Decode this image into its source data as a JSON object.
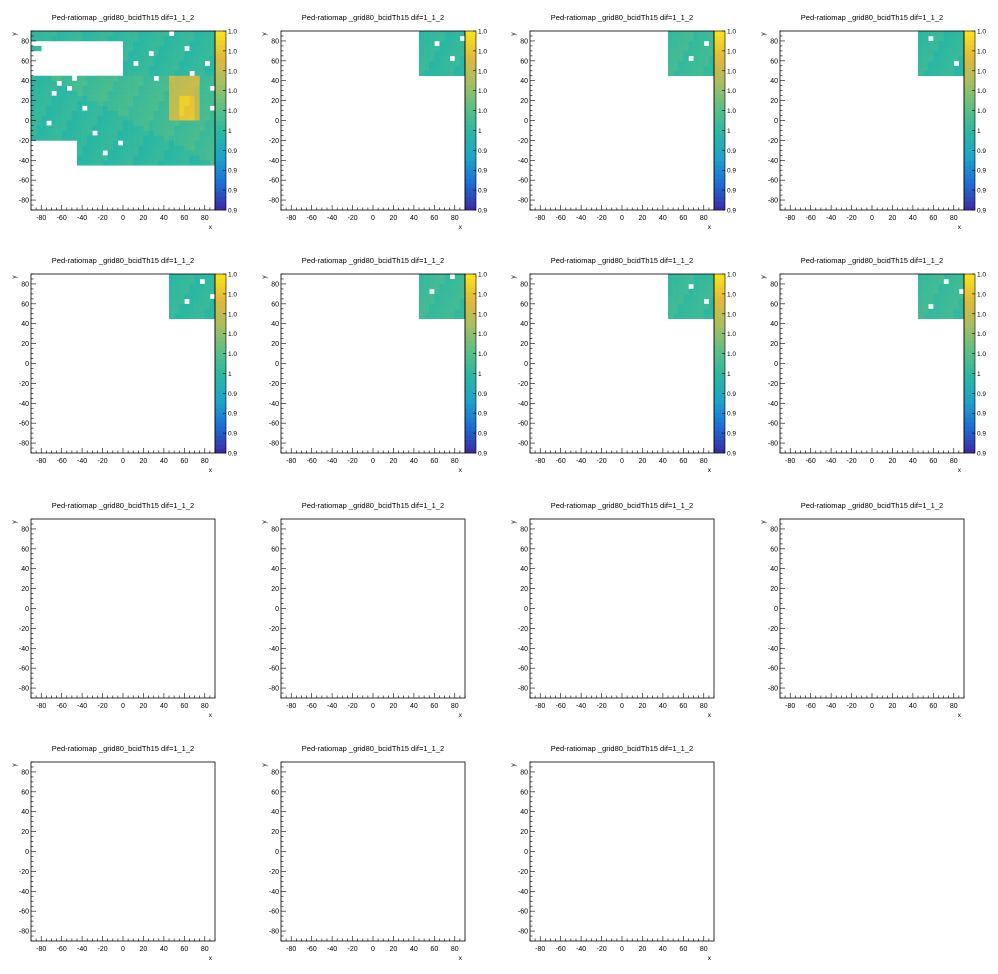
{
  "chart_data": {
    "type": "heatmap",
    "layout": {
      "columns": 4,
      "rows": 4
    },
    "palette": {
      "white": "#ffffff",
      "empty_cell": "#ffffff",
      "color_scale": [
        "#3a2ea6",
        "#1d6fd6",
        "#1da3c9",
        "#2ab7a3",
        "#5abf85",
        "#a5be63",
        "#e0b83c",
        "#f8e01c"
      ]
    },
    "panels": [
      {
        "title": "Ped-ratiomap _grid80_bcidTh15 dif=1_1_2",
        "xlabel": "x",
        "ylabel": "y",
        "xlim": [
          -90,
          90
        ],
        "ylim": [
          -90,
          90
        ],
        "x_ticks": [
          "-80",
          "-60",
          "-40",
          "-20",
          "0",
          "20",
          "40",
          "60",
          "80"
        ],
        "y_ticks": [
          "80",
          "60",
          "40",
          "20",
          "0",
          "-20",
          "-40",
          "-60",
          "-80"
        ],
        "has_data": true,
        "colorbar": {
          "labels": [
            "1.0",
            "1.0",
            "1.0",
            "1.0",
            "1.0",
            "1",
            "0.9",
            "0.9",
            "0.9",
            "0.9"
          ]
        },
        "cell_size": 5,
        "regions": [
          {
            "x": [
              0,
              90
            ],
            "y": [
              45,
              90
            ],
            "value": 0.45
          },
          {
            "x": [
              -90,
              0
            ],
            "y": [
              80,
              90
            ],
            "value": 0.45
          },
          {
            "x": [
              -90,
              -80
            ],
            "y": [
              70,
              75
            ],
            "value": 0.45
          },
          {
            "x": [
              -90,
              90
            ],
            "y": [
              0,
              45
            ],
            "value": 0.5
          },
          {
            "x": [
              -45,
              90
            ],
            "y": [
              -45,
              0
            ],
            "value": 0.5
          },
          {
            "x": [
              -90,
              -45
            ],
            "y": [
              -20,
              0
            ],
            "value": 0.5
          },
          {
            "x": [
              45,
              75
            ],
            "y": [
              0,
              45
            ],
            "value": 0.78
          },
          {
            "x": [
              55,
              70
            ],
            "y": [
              0,
              25
            ],
            "value": 0.92
          }
        ],
        "holes": [
          [
            -70,
            25
          ],
          [
            -65,
            35
          ],
          [
            -55,
            30
          ],
          [
            -50,
            40
          ],
          [
            -40,
            10
          ],
          [
            -30,
            -15
          ],
          [
            -20,
            -35
          ],
          [
            10,
            55
          ],
          [
            25,
            65
          ],
          [
            45,
            85
          ],
          [
            60,
            70
          ],
          [
            80,
            55
          ],
          [
            85,
            10
          ],
          [
            -5,
            -25
          ],
          [
            -75,
            -5
          ],
          [
            -60,
            -25
          ],
          [
            30,
            40
          ],
          [
            65,
            45
          ],
          [
            85,
            30
          ]
        ]
      },
      {
        "title": "Ped-ratiomap _grid80_bcidTh15 dif=1_1_2",
        "xlabel": "x",
        "ylabel": "y",
        "xlim": [
          -90,
          90
        ],
        "ylim": [
          -90,
          90
        ],
        "x_ticks": [
          "-80",
          "-60",
          "-40",
          "-20",
          "0",
          "20",
          "40",
          "60",
          "80"
        ],
        "y_ticks": [
          "80",
          "60",
          "40",
          "20",
          "0",
          "-20",
          "-40",
          "-60",
          "-80"
        ],
        "has_data": true,
        "colorbar": {
          "labels": [
            "1.0",
            "1.0",
            "1.0",
            "1.0",
            "1.0",
            "1",
            "0.9",
            "0.9",
            "0.9",
            "0.9"
          ]
        },
        "cell_size": 5,
        "regions": [
          {
            "x": [
              45,
              90
            ],
            "y": [
              45,
              90
            ],
            "value": 0.45
          }
        ],
        "holes": [
          [
            60,
            75
          ],
          [
            75,
            60
          ],
          [
            85,
            80
          ]
        ]
      },
      {
        "title": "Ped-ratiomap _grid80_bcidTh15 dif=1_1_2",
        "xlabel": "x",
        "ylabel": "y",
        "xlim": [
          -90,
          90
        ],
        "ylim": [
          -90,
          90
        ],
        "x_ticks": [
          "-80",
          "-60",
          "-40",
          "-20",
          "0",
          "20",
          "40",
          "60",
          "80"
        ],
        "y_ticks": [
          "80",
          "60",
          "40",
          "20",
          "0",
          "-20",
          "-40",
          "-60",
          "-80"
        ],
        "has_data": true,
        "colorbar": {
          "labels": [
            "1.0",
            "1.0",
            "1.0",
            "1.0",
            "1.0",
            "1",
            "0.9",
            "0.9",
            "0.9",
            "0.9"
          ]
        },
        "cell_size": 5,
        "regions": [
          {
            "x": [
              45,
              90
            ],
            "y": [
              45,
              90
            ],
            "value": 0.48
          }
        ],
        "holes": [
          [
            65,
            60
          ],
          [
            80,
            75
          ]
        ]
      },
      {
        "title": "Ped-ratiomap _grid80_bcidTh15 dif=1_1_2",
        "xlabel": "x",
        "ylabel": "y",
        "xlim": [
          -90,
          90
        ],
        "ylim": [
          -90,
          90
        ],
        "x_ticks": [
          "-80",
          "-60",
          "-40",
          "-20",
          "0",
          "20",
          "40",
          "60",
          "80"
        ],
        "y_ticks": [
          "80",
          "60",
          "40",
          "20",
          "0",
          "-20",
          "-40",
          "-60",
          "-80"
        ],
        "has_data": true,
        "colorbar": {
          "labels": [
            "1.0",
            "1.0",
            "1.0",
            "1.0",
            "1.0",
            "1",
            "0.9",
            "0.9",
            "0.9",
            "0.9"
          ]
        },
        "cell_size": 5,
        "regions": [
          {
            "x": [
              45,
              90
            ],
            "y": [
              45,
              90
            ],
            "value": 0.45
          }
        ],
        "holes": [
          [
            55,
            80
          ],
          [
            80,
            55
          ]
        ]
      },
      {
        "title": "Ped-ratiomap _grid80_bcidTh15 dif=1_1_2",
        "xlabel": "x",
        "ylabel": "y",
        "xlim": [
          -90,
          90
        ],
        "ylim": [
          -90,
          90
        ],
        "x_ticks": [
          "-80",
          "-60",
          "-40",
          "-20",
          "0",
          "20",
          "40",
          "60",
          "80"
        ],
        "y_ticks": [
          "80",
          "60",
          "40",
          "20",
          "0",
          "-20",
          "-40",
          "-60",
          "-80"
        ],
        "has_data": true,
        "colorbar": {
          "labels": [
            "1.0",
            "1.0",
            "1.0",
            "1.0",
            "1.0",
            "1",
            "0.9",
            "0.9",
            "0.9",
            "0.9"
          ]
        },
        "cell_size": 5,
        "regions": [
          {
            "x": [
              45,
              90
            ],
            "y": [
              45,
              90
            ],
            "value": 0.45
          }
        ],
        "holes": [
          [
            60,
            60
          ],
          [
            75,
            80
          ],
          [
            85,
            65
          ]
        ]
      },
      {
        "title": "Ped-ratiomap _grid80_bcidTh15 dif=1_1_2",
        "xlabel": "x",
        "ylabel": "y",
        "xlim": [
          -90,
          90
        ],
        "ylim": [
          -90,
          90
        ],
        "x_ticks": [
          "-80",
          "-60",
          "-40",
          "-20",
          "0",
          "20",
          "40",
          "60",
          "80"
        ],
        "y_ticks": [
          "80",
          "60",
          "40",
          "20",
          "0",
          "-20",
          "-40",
          "-60",
          "-80"
        ],
        "has_data": true,
        "colorbar": {
          "labels": [
            "1.0",
            "1.0",
            "1.0",
            "1.0",
            "1.0",
            "1",
            "0.9",
            "0.9",
            "0.9",
            "0.9"
          ]
        },
        "cell_size": 5,
        "regions": [
          {
            "x": [
              45,
              90
            ],
            "y": [
              45,
              90
            ],
            "value": 0.48
          }
        ],
        "holes": [
          [
            55,
            70
          ],
          [
            75,
            85
          ]
        ]
      },
      {
        "title": "Ped-ratiomap _grid80_bcidTh15 dif=1_1_2",
        "xlabel": "x",
        "ylabel": "y",
        "xlim": [
          -90,
          90
        ],
        "ylim": [
          -90,
          90
        ],
        "x_ticks": [
          "-80",
          "-60",
          "-40",
          "-20",
          "0",
          "20",
          "40",
          "60",
          "80"
        ],
        "y_ticks": [
          "80",
          "60",
          "40",
          "20",
          "0",
          "-20",
          "-40",
          "-60",
          "-80"
        ],
        "has_data": true,
        "colorbar": {
          "labels": [
            "1.0",
            "1.0",
            "1.0",
            "1.0",
            "1.0",
            "1",
            "0.9",
            "0.9",
            "0.9",
            "0.9"
          ]
        },
        "cell_size": 5,
        "regions": [
          {
            "x": [
              45,
              90
            ],
            "y": [
              45,
              90
            ],
            "value": 0.47
          }
        ],
        "holes": [
          [
            65,
            75
          ],
          [
            80,
            60
          ]
        ]
      },
      {
        "title": "Ped-ratiomap _grid80_bcidTh15 dif=1_1_2",
        "xlabel": "x",
        "ylabel": "y",
        "xlim": [
          -90,
          90
        ],
        "ylim": [
          -90,
          90
        ],
        "x_ticks": [
          "-80",
          "-60",
          "-40",
          "-20",
          "0",
          "20",
          "40",
          "60",
          "80"
        ],
        "y_ticks": [
          "80",
          "60",
          "40",
          "20",
          "0",
          "-20",
          "-40",
          "-60",
          "-80"
        ],
        "has_data": true,
        "colorbar": {
          "labels": [
            "1.0",
            "1.0",
            "1.0",
            "1.0",
            "1.0",
            "1",
            "0.9",
            "0.9",
            "0.9",
            "0.9"
          ]
        },
        "cell_size": 5,
        "regions": [
          {
            "x": [
              45,
              90
            ],
            "y": [
              45,
              90
            ],
            "value": 0.48
          }
        ],
        "holes": [
          [
            55,
            55
          ],
          [
            70,
            80
          ],
          [
            85,
            70
          ]
        ]
      },
      {
        "title": "Ped-ratiomap _grid80_bcidTh15 dif=1_1_2",
        "xlabel": "x",
        "ylabel": "y",
        "xlim": [
          -90,
          90
        ],
        "ylim": [
          -90,
          90
        ],
        "x_ticks": [
          "-80",
          "-60",
          "-40",
          "-20",
          "0",
          "20",
          "40",
          "60",
          "80"
        ],
        "y_ticks": [
          "80",
          "60",
          "40",
          "20",
          "0",
          "-20",
          "-40",
          "-60",
          "-80"
        ],
        "has_data": false
      },
      {
        "title": "Ped-ratiomap _grid80_bcidTh15 dif=1_1_2",
        "xlabel": "x",
        "ylabel": "y",
        "xlim": [
          -90,
          90
        ],
        "ylim": [
          -90,
          90
        ],
        "x_ticks": [
          "-80",
          "-60",
          "-40",
          "-20",
          "0",
          "20",
          "40",
          "60",
          "80"
        ],
        "y_ticks": [
          "80",
          "60",
          "40",
          "20",
          "0",
          "-20",
          "-40",
          "-60",
          "-80"
        ],
        "has_data": false
      },
      {
        "title": "Ped-ratiomap _grid80_bcidTh15 dif=1_1_2",
        "xlabel": "x",
        "ylabel": "y",
        "xlim": [
          -90,
          90
        ],
        "ylim": [
          -90,
          90
        ],
        "x_ticks": [
          "-80",
          "-60",
          "-40",
          "-20",
          "0",
          "20",
          "40",
          "60",
          "80"
        ],
        "y_ticks": [
          "80",
          "60",
          "40",
          "20",
          "0",
          "-20",
          "-40",
          "-60",
          "-80"
        ],
        "has_data": false
      },
      {
        "title": "Ped-ratiomap _grid80_bcidTh15 dif=1_1_2",
        "xlabel": "x",
        "ylabel": "y",
        "xlim": [
          -90,
          90
        ],
        "ylim": [
          -90,
          90
        ],
        "x_ticks": [
          "-80",
          "-60",
          "-40",
          "-20",
          "0",
          "20",
          "40",
          "60",
          "80"
        ],
        "y_ticks": [
          "80",
          "60",
          "40",
          "20",
          "0",
          "-20",
          "-40",
          "-60",
          "-80"
        ],
        "has_data": false
      },
      {
        "title": "Ped-ratiomap _grid80_bcidTh15 dif=1_1_2",
        "xlabel": "x",
        "ylabel": "y",
        "xlim": [
          -90,
          90
        ],
        "ylim": [
          -90,
          90
        ],
        "x_ticks": [
          "-80",
          "-60",
          "-40",
          "-20",
          "0",
          "20",
          "40",
          "60",
          "80"
        ],
        "y_ticks": [
          "80",
          "60",
          "40",
          "20",
          "0",
          "-20",
          "-40",
          "-60",
          "-80"
        ],
        "has_data": false
      },
      {
        "title": "Ped-ratiomap _grid80_bcidTh15 dif=1_1_2",
        "xlabel": "x",
        "ylabel": "y",
        "xlim": [
          -90,
          90
        ],
        "ylim": [
          -90,
          90
        ],
        "x_ticks": [
          "-80",
          "-60",
          "-40",
          "-20",
          "0",
          "20",
          "40",
          "60",
          "80"
        ],
        "y_ticks": [
          "80",
          "60",
          "40",
          "20",
          "0",
          "-20",
          "-40",
          "-60",
          "-80"
        ],
        "has_data": false
      },
      {
        "title": "Ped-ratiomap _grid80_bcidTh15 dif=1_1_2",
        "xlabel": "x",
        "ylabel": "y",
        "xlim": [
          -90,
          90
        ],
        "ylim": [
          -90,
          90
        ],
        "x_ticks": [
          "-80",
          "-60",
          "-40",
          "-20",
          "0",
          "20",
          "40",
          "60",
          "80"
        ],
        "y_ticks": [
          "80",
          "60",
          "40",
          "20",
          "0",
          "-20",
          "-40",
          "-60",
          "-80"
        ],
        "has_data": false
      }
    ]
  }
}
